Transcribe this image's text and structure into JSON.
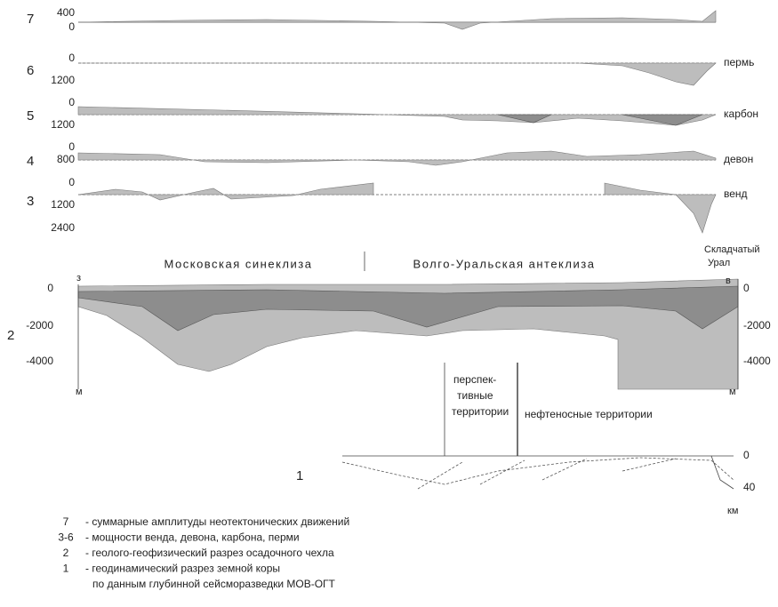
{
  "panels": [
    {
      "number": "7",
      "ticks": [
        "400",
        "0"
      ]
    },
    {
      "number": "6",
      "ticks": [
        "0",
        "1200"
      ],
      "label": "пермь"
    },
    {
      "number": "5",
      "ticks": [
        "0",
        "1200"
      ],
      "label": "карбон"
    },
    {
      "number": "4",
      "ticks": [
        "0",
        "800"
      ],
      "label": "девон"
    },
    {
      "number": "3",
      "ticks": [
        "0",
        "1200",
        "2400"
      ],
      "label": "венд"
    }
  ],
  "section": {
    "number": "2",
    "regions": [
      "Московская синеклиза",
      "Волго-Уральская антеклиза"
    ],
    "ural": [
      "Складчатый",
      "Урал"
    ],
    "west": "з",
    "east": "в",
    "left_ticks": [
      "0",
      "-2000",
      "-4000"
    ],
    "right_ticks": [
      "0",
      "-2000",
      "-4000"
    ],
    "unit_left": "м",
    "unit_right": "м"
  },
  "crust": {
    "number": "1",
    "prospective": [
      "перспек-",
      "тивные",
      "территории"
    ],
    "oil": "нефтеносные территории",
    "ticks": [
      "0",
      "40"
    ],
    "unit": "км"
  },
  "legend": [
    {
      "key": "7",
      "lines": [
        "- суммарные амплитуды неотектонических движений"
      ]
    },
    {
      "key": "3-6",
      "lines": [
        "- мощности венда, девона, карбона, перми"
      ]
    },
    {
      "key": "2",
      "lines": [
        "- геолого-геофизический разрез осадочного чехла"
      ]
    },
    {
      "key": "1",
      "lines": [
        "- геодинамический разрез земной коры",
        "по данным глубинной сейсморазведки МОВ-ОГТ"
      ]
    }
  ]
}
